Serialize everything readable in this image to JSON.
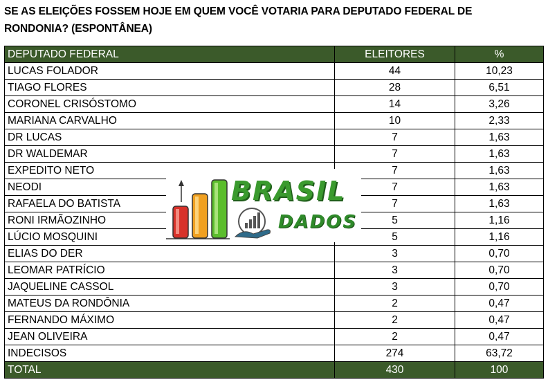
{
  "title": "SE AS ELEIÇÕES FOSSEM HOJE EM QUEM VOCÊ VOTARIA PARA DEPUTADO FEDERAL DE RONDONIA? (ESPONTÂNEA)",
  "table": {
    "headers": [
      "DEPUTADO FEDERAL",
      "ELEITORES",
      "%"
    ],
    "rows": [
      {
        "name": "LUCAS FOLADOR",
        "voters": "44",
        "pct": "10,23"
      },
      {
        "name": "TIAGO FLORES",
        "voters": "28",
        "pct": "6,51"
      },
      {
        "name": "CORONEL CRISÓSTOMO",
        "voters": "14",
        "pct": "3,26"
      },
      {
        "name": "MARIANA CARVALHO",
        "voters": "10",
        "pct": "2,33"
      },
      {
        "name": "DR LUCAS",
        "voters": "7",
        "pct": "1,63"
      },
      {
        "name": "DR WALDEMAR",
        "voters": "7",
        "pct": "1,63"
      },
      {
        "name": "EXPEDITO NETO",
        "voters": "7",
        "pct": "1,63"
      },
      {
        "name": "NEODI",
        "voters": "7",
        "pct": "1,63"
      },
      {
        "name": "RAFAELA DO BATISTA",
        "voters": "7",
        "pct": "1,63"
      },
      {
        "name": "RONI IRMÃOZINHO",
        "voters": "5",
        "pct": "1,16"
      },
      {
        "name": "LÚCIO MOSQUINI",
        "voters": "5",
        "pct": "1,16"
      },
      {
        "name": "ELIAS DO DER",
        "voters": "3",
        "pct": "0,70"
      },
      {
        "name": "LEOMAR PATRÍCIO",
        "voters": "3",
        "pct": "0,70"
      },
      {
        "name": "JAQUELINE CASSOL",
        "voters": "3",
        "pct": "0,70"
      },
      {
        "name": "MATEUS DA RONDÔNIA",
        "voters": "2",
        "pct": "0,47"
      },
      {
        "name": "FERNANDO MÁXIMO",
        "voters": "2",
        "pct": "0,47"
      },
      {
        "name": "JEAN OLIVEIRA",
        "voters": "2",
        "pct": "0,47"
      },
      {
        "name": "INDECISOS",
        "voters": "274",
        "pct": "63,72"
      }
    ],
    "total": {
      "name": "TOTAL",
      "voters": "430",
      "pct": "100"
    }
  },
  "logo": {
    "word1": "BRASIL",
    "word2": "DADOS",
    "icon": "bar-chart-hand-logo-icon"
  },
  "colors": {
    "header_bg": "#3b5a2a",
    "header_text": "#ffffff",
    "logo_green": "#3a9a2e",
    "bar_red": "#d8322a",
    "bar_orange": "#f0a020",
    "bar_green": "#5bbd2c"
  }
}
